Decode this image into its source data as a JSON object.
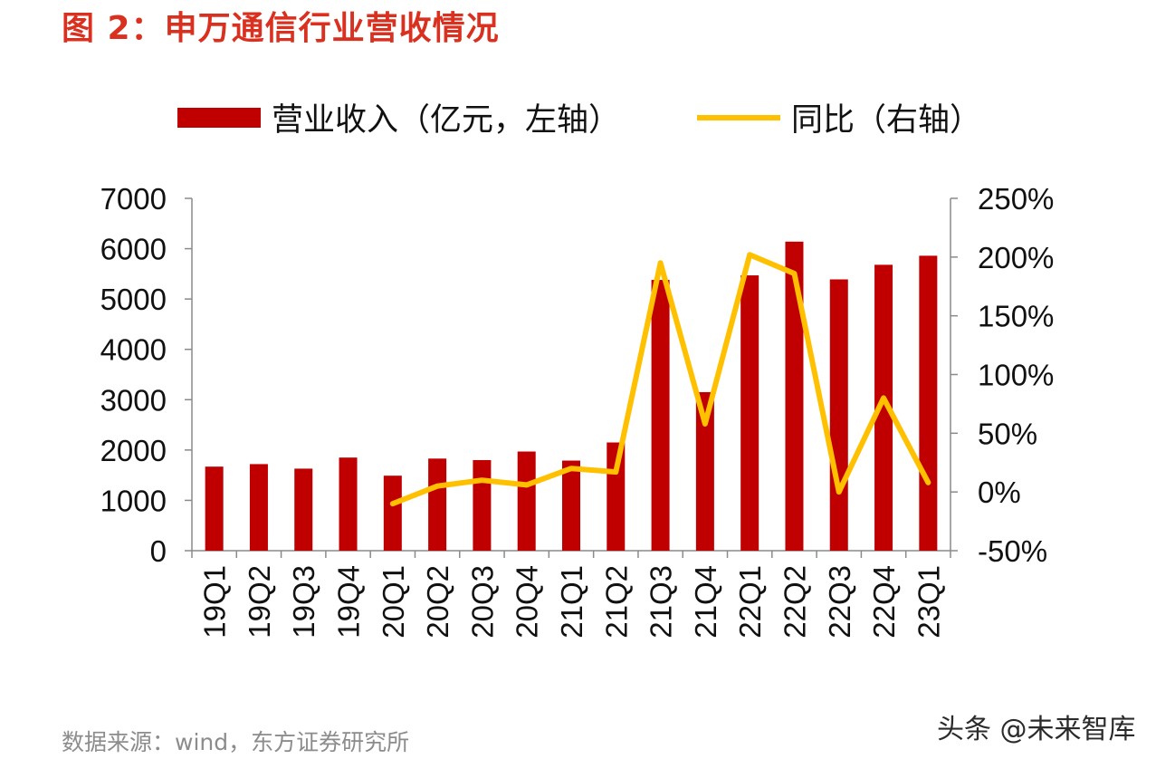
{
  "header": {
    "title": "图 2：申万通信行业营收情况"
  },
  "footer": {
    "source": "数据来源：wind，东方证券研究所",
    "watermark": "头条 @未来智库"
  },
  "colors": {
    "title": "#d9301f",
    "bar": "#c00000",
    "line": "#ffc000"
  },
  "chart_data": {
    "type": "bar",
    "title": "",
    "categories": [
      "19Q1",
      "19Q2",
      "19Q3",
      "19Q4",
      "20Q1",
      "20Q2",
      "20Q3",
      "20Q4",
      "21Q1",
      "21Q2",
      "21Q3",
      "21Q4",
      "22Q1",
      "22Q2",
      "22Q3",
      "22Q4",
      "23Q1"
    ],
    "series": [
      {
        "name": "营业收入（亿元，左轴）",
        "type": "bar",
        "axis": "left",
        "values": [
          1670,
          1720,
          1630,
          1850,
          1490,
          1830,
          1800,
          1970,
          1790,
          2150,
          5380,
          3150,
          5470,
          6140,
          5390,
          5680,
          5860
        ]
      },
      {
        "name": "同比（右轴）",
        "type": "line",
        "axis": "right",
        "values": [
          null,
          null,
          null,
          null,
          -10,
          5,
          10,
          6,
          20,
          17,
          195,
          58,
          202,
          186,
          0,
          80,
          8
        ]
      }
    ],
    "y_left": {
      "min": 0,
      "max": 7000,
      "ticks": [
        "0",
        "1000",
        "2000",
        "3000",
        "4000",
        "5000",
        "6000",
        "7000"
      ]
    },
    "y_right": {
      "min": -50,
      "max": 250,
      "ticks": [
        "-50%",
        "0%",
        "50%",
        "100%",
        "150%",
        "200%",
        "250%"
      ]
    },
    "legend": {
      "position": "top",
      "items": [
        "营业收入（亿元，左轴）",
        "同比（右轴）"
      ]
    },
    "grid": false
  }
}
